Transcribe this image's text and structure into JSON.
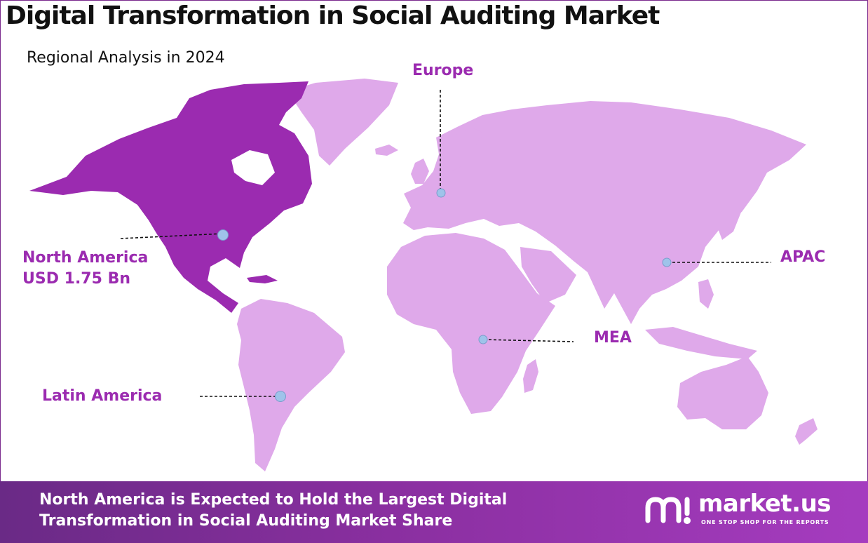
{
  "title": "Digital Transformation in Social Auditing Market",
  "subtitle": "Regional Analysis in 2024",
  "regions": {
    "north_america": {
      "name": "North America",
      "value": "USD 1.75 Bn",
      "highlighted": true
    },
    "europe": {
      "name": "Europe"
    },
    "apac": {
      "name": "APAC"
    },
    "mea": {
      "name": "MEA"
    },
    "latin_america": {
      "name": "Latin America"
    }
  },
  "footer": {
    "line1": "North America is Expected to Hold the Largest Digital",
    "line2": "Transformation in Social Auditing Market Share"
  },
  "brand": {
    "name": "market.us",
    "tagline": "ONE STOP SHOP FOR THE REPORTS"
  },
  "colors": {
    "highlight_region": "#9b2bb0",
    "other_regions": "#dfa9ea",
    "label_color": "#9b2bb0",
    "marker_fill": "#9fc3ea",
    "footer_gradient_start": "#6a2a86",
    "footer_gradient_end": "#a53cbf"
  }
}
